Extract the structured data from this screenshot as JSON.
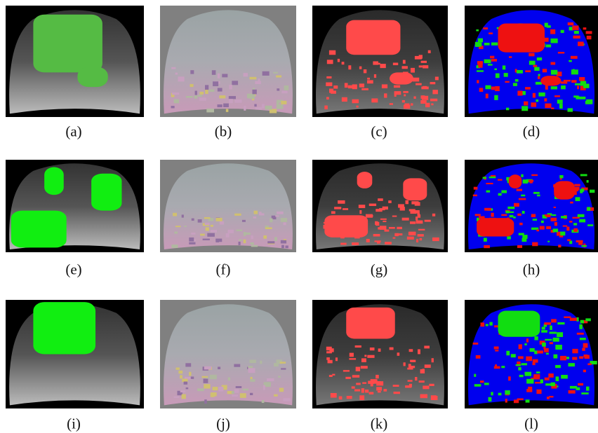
{
  "figure": {
    "captions": [
      "(a)",
      "(b)",
      "(c)",
      "(d)",
      "(e)",
      "(f)",
      "(g)",
      "(h)",
      "(i)",
      "(j)",
      "(k)",
      "(l)"
    ]
  }
}
